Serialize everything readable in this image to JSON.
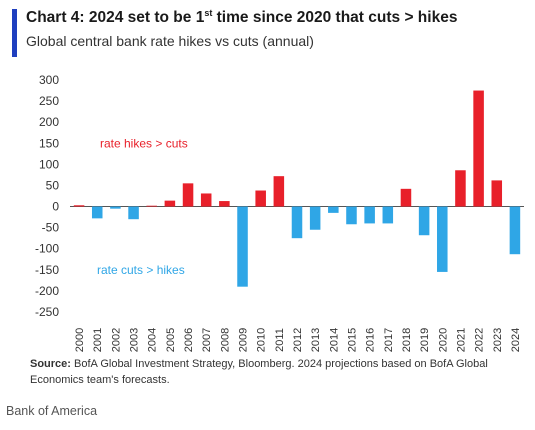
{
  "header": {
    "title_pre": "Chart 4: 2024 set to be 1",
    "title_sup": "st",
    "title_post": " time since 2020 that cuts > hikes",
    "subtitle": "Global central bank rate hikes vs cuts (annual)"
  },
  "chart_data": {
    "type": "bar",
    "categories": [
      "2000",
      "2001",
      "2002",
      "2003",
      "2004",
      "2005",
      "2006",
      "2007",
      "2008",
      "2009",
      "2010",
      "2011",
      "2012",
      "2013",
      "2014",
      "2015",
      "2016",
      "2017",
      "2018",
      "2019",
      "2020",
      "2021",
      "2022",
      "2023",
      "2024"
    ],
    "values": [
      3,
      -28,
      -5,
      -30,
      2,
      14,
      55,
      31,
      13,
      -190,
      38,
      72,
      -75,
      -55,
      -15,
      -42,
      -40,
      -40,
      42,
      -68,
      -155,
      86,
      275,
      62,
      -113
    ],
    "yticks": [
      300,
      250,
      200,
      150,
      100,
      50,
      0,
      -50,
      -100,
      -150,
      -200,
      -250
    ],
    "ylim": [
      -250,
      300
    ],
    "annotations": {
      "hikes": "rate hikes > cuts",
      "cuts": "rate cuts > hikes"
    },
    "colors": {
      "positive": "#e8202a",
      "negative": "#2fa6e6",
      "axis": "#555555"
    },
    "grid": false,
    "legend": "none"
  },
  "footer": {
    "source_label": "Source:",
    "source_text": " BofA Global Investment Strategy, Bloomberg. 2024 projections based on BofA Global Economics team's forecasts.",
    "caption": "Bank of America"
  }
}
